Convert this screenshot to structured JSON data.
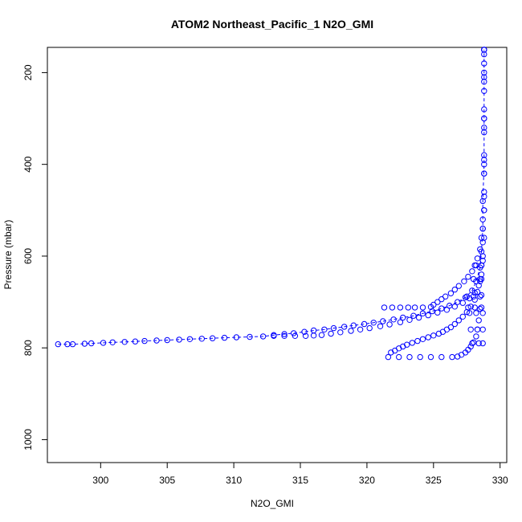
{
  "chart_data": {
    "type": "scatter",
    "title": "ATOM2 Northeast_Pacific_1 N2O_GMI",
    "xlabel": "N2O_GMI",
    "ylabel": "Pressure (mbar)",
    "xlim": [
      296,
      330.5
    ],
    "ylim": [
      1050,
      145
    ],
    "y_axis_inverted": true,
    "x_ticks": [
      300,
      305,
      310,
      315,
      320,
      325,
      330
    ],
    "y_ticks": [
      200,
      400,
      600,
      800,
      1000
    ],
    "marker": "open-circle",
    "color": "#0000ff",
    "series": [
      {
        "style": "dashed-line-with-markers",
        "points": [
          [
            296.8,
            792
          ],
          [
            297.5,
            792
          ],
          [
            297.9,
            792
          ],
          [
            298.8,
            791
          ],
          [
            299.3,
            790
          ],
          [
            300.2,
            789
          ],
          [
            300.9,
            788
          ],
          [
            301.8,
            787
          ],
          [
            302.6,
            786
          ],
          [
            303.3,
            785
          ],
          [
            304.2,
            784
          ],
          [
            305.0,
            783
          ],
          [
            305.9,
            782
          ],
          [
            306.7,
            781
          ],
          [
            307.6,
            780
          ],
          [
            308.4,
            779
          ],
          [
            309.3,
            778
          ],
          [
            310.2,
            777
          ],
          [
            311.2,
            776
          ],
          [
            312.2,
            775
          ],
          [
            313.0,
            772
          ],
          [
            313.8,
            770
          ],
          [
            314.5,
            768
          ],
          [
            315.3,
            765
          ],
          [
            316.0,
            762
          ],
          [
            316.8,
            760
          ],
          [
            317.5,
            757
          ],
          [
            318.3,
            754
          ],
          [
            319.0,
            751
          ],
          [
            319.8,
            748
          ],
          [
            320.5,
            745
          ],
          [
            321.2,
            742
          ],
          [
            322.0,
            738
          ],
          [
            322.7,
            734
          ],
          [
            323.5,
            730
          ],
          [
            324.2,
            725
          ],
          [
            324.9,
            720
          ],
          [
            325.6,
            714
          ],
          [
            326.2,
            708
          ],
          [
            326.8,
            700
          ],
          [
            327.4,
            690
          ],
          [
            327.9,
            675
          ],
          [
            328.2,
            655
          ],
          [
            328.5,
            625
          ],
          [
            328.6,
            590
          ],
          [
            328.7,
            540
          ],
          [
            328.7,
            480
          ],
          [
            328.8,
            400
          ],
          [
            328.8,
            300
          ],
          [
            328.8,
            200
          ],
          [
            328.8,
            150
          ]
        ]
      },
      {
        "style": "markers",
        "points": [
          [
            313.0,
            774
          ],
          [
            313.8,
            774
          ],
          [
            314.6,
            774
          ],
          [
            315.4,
            774
          ],
          [
            316.0,
            773
          ],
          [
            316.6,
            772
          ],
          [
            317.3,
            769
          ],
          [
            318.0,
            766
          ],
          [
            318.8,
            763
          ],
          [
            319.5,
            760
          ],
          [
            320.2,
            757
          ],
          [
            321.0,
            753
          ],
          [
            321.7,
            749
          ],
          [
            322.5,
            744
          ],
          [
            323.2,
            739
          ],
          [
            323.9,
            734
          ],
          [
            324.6,
            729
          ],
          [
            325.3,
            723
          ],
          [
            326.0,
            717
          ],
          [
            326.6,
            710
          ],
          [
            327.2,
            702
          ],
          [
            327.7,
            692
          ],
          [
            328.1,
            680
          ],
          [
            328.4,
            664
          ],
          [
            328.6,
            640
          ],
          [
            328.7,
            610
          ],
          [
            328.8,
            560
          ],
          [
            328.8,
            500
          ],
          [
            328.8,
            420
          ],
          [
            328.8,
            320
          ],
          [
            328.8,
            220
          ],
          [
            328.8,
            150
          ]
        ]
      },
      {
        "style": "markers",
        "points": [
          [
            321.3,
            712
          ],
          [
            321.9,
            712
          ],
          [
            322.5,
            712
          ],
          [
            323.1,
            712
          ],
          [
            323.6,
            712
          ],
          [
            324.2,
            712
          ],
          [
            324.8,
            711
          ],
          [
            325.0,
            706
          ],
          [
            325.3,
            700
          ],
          [
            325.6,
            694
          ],
          [
            325.9,
            688
          ],
          [
            326.3,
            681
          ],
          [
            326.6,
            673
          ],
          [
            326.9,
            665
          ],
          [
            327.3,
            655
          ],
          [
            327.6,
            645
          ],
          [
            327.9,
            633
          ],
          [
            328.1,
            620
          ],
          [
            328.3,
            605
          ],
          [
            328.5,
            585
          ],
          [
            328.6,
            560
          ],
          [
            328.7,
            520
          ],
          [
            328.8,
            460
          ],
          [
            328.8,
            380
          ],
          [
            328.8,
            280
          ],
          [
            328.8,
            180
          ]
        ]
      },
      {
        "style": "markers",
        "points": [
          [
            321.8,
            810
          ],
          [
            322.1,
            806
          ],
          [
            322.4,
            801
          ],
          [
            322.7,
            797
          ],
          [
            323.0,
            793
          ],
          [
            323.4,
            789
          ],
          [
            323.8,
            785
          ],
          [
            324.2,
            781
          ],
          [
            324.6,
            777
          ],
          [
            325.0,
            773
          ],
          [
            325.4,
            769
          ],
          [
            325.7,
            765
          ],
          [
            326.0,
            760
          ],
          [
            326.3,
            755
          ],
          [
            326.6,
            748
          ],
          [
            326.9,
            740
          ],
          [
            327.2,
            732
          ],
          [
            327.5,
            722
          ],
          [
            327.8,
            710
          ],
          [
            328.1,
            695
          ],
          [
            328.3,
            678
          ],
          [
            328.5,
            655
          ],
          [
            328.6,
            620
          ],
          [
            328.7,
            570
          ],
          [
            328.8,
            500
          ],
          [
            328.8,
            420
          ],
          [
            328.8,
            330
          ],
          [
            328.8,
            240
          ],
          [
            328.8,
            160
          ]
        ]
      },
      {
        "style": "markers",
        "points": [
          [
            321.6,
            820
          ],
          [
            322.4,
            820
          ],
          [
            323.2,
            820
          ],
          [
            324.0,
            820
          ],
          [
            324.8,
            820
          ],
          [
            325.6,
            820
          ],
          [
            326.4,
            820
          ],
          [
            326.8,
            819
          ],
          [
            327.1,
            815
          ],
          [
            327.4,
            810
          ],
          [
            327.6,
            804
          ],
          [
            327.8,
            797
          ],
          [
            328.0,
            788
          ],
          [
            328.2,
            775
          ],
          [
            328.3,
            760
          ],
          [
            328.4,
            740
          ],
          [
            328.5,
            715
          ],
          [
            328.6,
            685
          ],
          [
            328.6,
            650
          ],
          [
            328.7,
            600
          ],
          [
            328.7,
            540
          ],
          [
            328.8,
            470
          ],
          [
            328.8,
            390
          ],
          [
            328.8,
            300
          ],
          [
            328.8,
            210
          ],
          [
            328.8,
            150
          ]
        ]
      },
      {
        "style": "markers",
        "points": [
          [
            327.5,
            688
          ],
          [
            328.0,
            688
          ],
          [
            328.5,
            688
          ],
          [
            327.6,
            712
          ],
          [
            328.1,
            712
          ],
          [
            328.6,
            712
          ],
          [
            327.7,
            724
          ],
          [
            328.2,
            724
          ],
          [
            328.7,
            724
          ],
          [
            327.8,
            760
          ],
          [
            328.3,
            760
          ],
          [
            328.7,
            760
          ],
          [
            327.9,
            790
          ],
          [
            328.4,
            790
          ],
          [
            328.7,
            790
          ],
          [
            328.0,
            650
          ],
          [
            328.5,
            650
          ],
          [
            328.2,
            620
          ],
          [
            328.6,
            620
          ]
        ]
      }
    ]
  }
}
